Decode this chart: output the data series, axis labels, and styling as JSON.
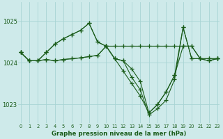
{
  "title": "Graphe pression niveau de la mer (hPa)",
  "bg_color": "#ceeaea",
  "grid_color": "#a8d4d4",
  "line_color": "#1a5c1a",
  "marker_color": "#1a5c1a",
  "xlim": [
    -0.3,
    23.3
  ],
  "ylim": [
    1022.55,
    1025.45
  ],
  "yticks": [
    1023,
    1024,
    1025
  ],
  "xticks": [
    0,
    1,
    2,
    3,
    4,
    5,
    6,
    7,
    8,
    9,
    10,
    11,
    12,
    13,
    14,
    15,
    16,
    17,
    18,
    19,
    20,
    21,
    22,
    23
  ],
  "series": [
    [
      1024.25,
      1024.05,
      1024.05,
      1024.08,
      1024.05,
      1024.08,
      1024.1,
      1024.12,
      1024.15,
      1024.18,
      1024.4,
      1024.4,
      1024.4,
      1024.4,
      1024.4,
      1024.4,
      1024.4,
      1024.4,
      1024.4,
      1024.4,
      1024.4,
      1024.1,
      1024.1,
      1024.1
    ],
    [
      1024.25,
      1024.05,
      1024.05,
      1024.25,
      1024.45,
      1024.58,
      1024.68,
      1024.78,
      1024.95,
      1024.5,
      1024.4,
      1024.1,
      1024.05,
      1023.85,
      1023.55,
      1022.8,
      1023.0,
      1023.3,
      1023.7,
      1024.85,
      1024.1,
      1024.1,
      1024.05,
      1024.1
    ],
    [
      1024.25,
      1024.05,
      1024.05,
      1024.25,
      1024.45,
      1024.58,
      1024.68,
      1024.78,
      1024.95,
      1024.5,
      1024.4,
      1024.1,
      1024.05,
      1023.65,
      1023.35,
      1022.75,
      1022.9,
      1023.1,
      1023.6,
      1024.85,
      1024.1,
      1024.1,
      1024.05,
      1024.1
    ],
    [
      1024.25,
      1024.05,
      1024.05,
      1024.08,
      1024.05,
      1024.08,
      1024.1,
      1024.12,
      1024.15,
      1024.18,
      1024.4,
      1024.1,
      1023.8,
      1023.5,
      1023.2,
      1022.8,
      1023.0,
      1023.3,
      1023.7,
      1024.4,
      1024.4,
      1024.1,
      1024.1,
      1024.1
    ]
  ],
  "figsize": [
    3.2,
    2.0
  ],
  "dpi": 100
}
